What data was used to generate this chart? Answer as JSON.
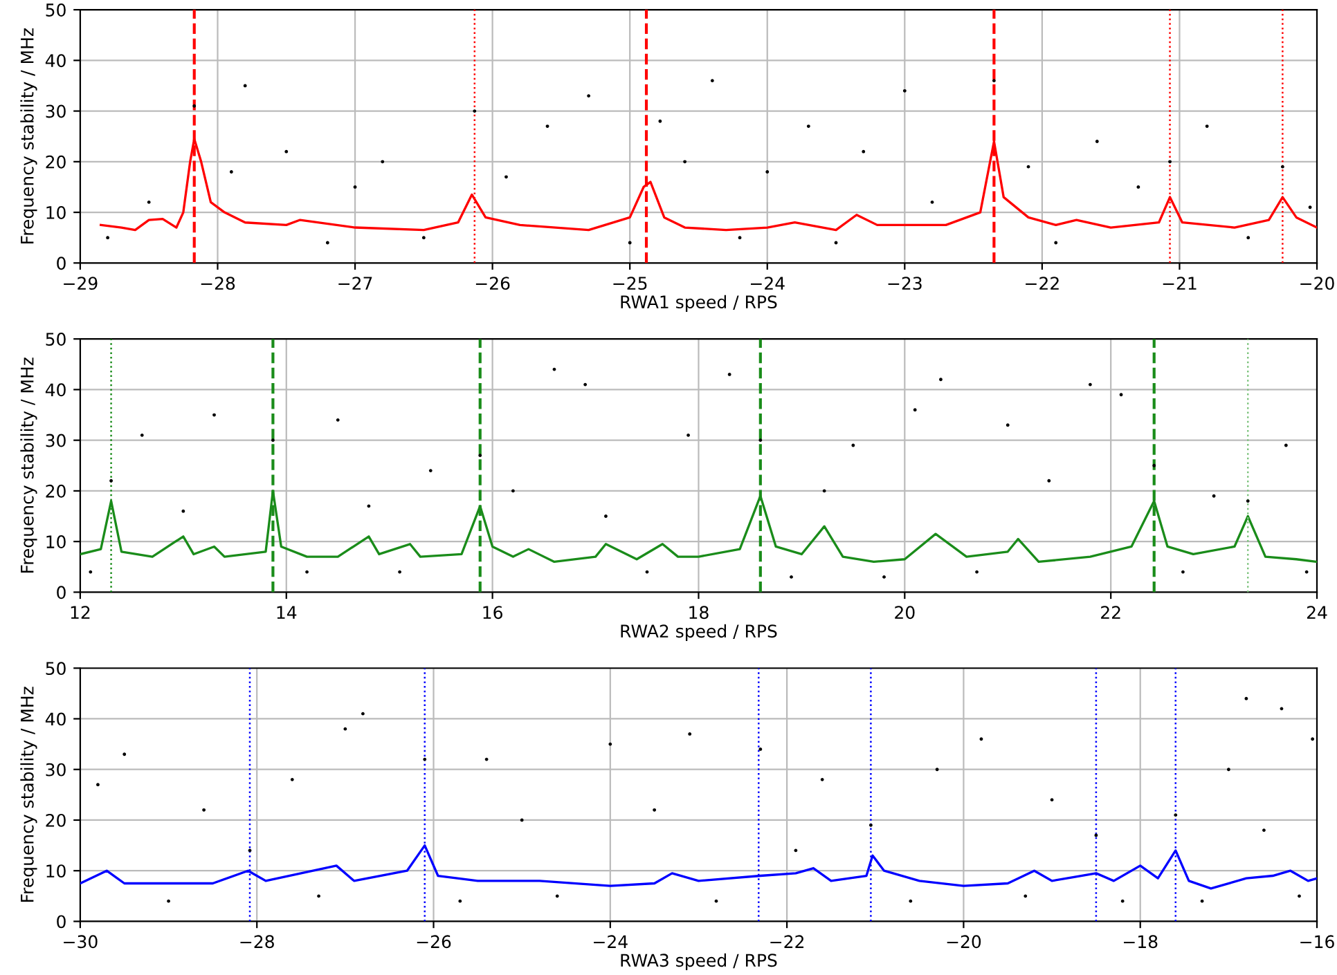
{
  "chart_data": [
    {
      "type": "scatter",
      "xlabel": "RWA1 speed / RPS",
      "ylabel": "Frequency stability / MHz",
      "xlim": [
        -29,
        -20
      ],
      "ylim": [
        0,
        50
      ],
      "xticks": [
        {
          "value": -29,
          "label": "−29"
        },
        {
          "value": -28,
          "label": "−28"
        },
        {
          "value": -27,
          "label": "−27"
        },
        {
          "value": -26,
          "label": "−26"
        },
        {
          "value": -25,
          "label": "−25"
        },
        {
          "value": -24,
          "label": "−24"
        },
        {
          "value": -23,
          "label": "−23"
        },
        {
          "value": -22,
          "label": "−22"
        },
        {
          "value": -21,
          "label": "−21"
        },
        {
          "value": -20,
          "label": "−20"
        }
      ],
      "yticks": [
        0,
        10,
        20,
        30,
        40,
        50
      ],
      "grid": true,
      "series": [
        {
          "color": "#000000",
          "marker": "circle",
          "x": [
            -28.8,
            -28.5,
            -28.17,
            -27.9,
            -27.8,
            -27.5,
            -27.2,
            -27.0,
            -26.8,
            -26.5,
            -26.13,
            -25.9,
            -25.6,
            -25.3,
            -25.0,
            -24.78,
            -24.6,
            -24.4,
            -24.2,
            -24.0,
            -23.7,
            -23.5,
            -23.3,
            -23.0,
            -22.8,
            -22.35,
            -22.1,
            -21.9,
            -21.6,
            -21.3,
            -21.07,
            -20.8,
            -20.5,
            -20.25,
            -20.05
          ],
          "values": [
            5,
            12,
            31,
            18,
            35,
            22,
            4,
            15,
            20,
            5,
            30,
            17,
            27,
            33,
            4,
            28,
            20,
            36,
            5,
            18,
            27,
            4,
            22,
            34,
            12,
            36,
            19,
            4,
            24,
            15,
            20,
            27,
            5,
            19,
            11
          ]
        },
        {
          "type": "line",
          "color": "#ff0000",
          "marker": "none",
          "x": [
            -28.85,
            -28.7,
            -28.6,
            -28.5,
            -28.4,
            -28.3,
            -28.25,
            -28.2,
            -28.17,
            -28.12,
            -28.05,
            -27.95,
            -27.8,
            -27.5,
            -27.4,
            -27.0,
            -26.5,
            -26.25,
            -26.15,
            -26.05,
            -25.8,
            -25.3,
            -25.0,
            -24.9,
            -24.85,
            -24.75,
            -24.6,
            -24.3,
            -24.0,
            -23.8,
            -23.5,
            -23.35,
            -23.2,
            -22.7,
            -22.45,
            -22.35,
            -22.28,
            -22.1,
            -21.9,
            -21.75,
            -21.5,
            -21.15,
            -21.07,
            -20.98,
            -20.6,
            -20.35,
            -20.25,
            -20.15,
            -20.0
          ],
          "values": [
            7.5,
            7,
            6.5,
            8.5,
            8.7,
            7,
            10,
            20,
            24.5,
            20,
            12,
            10,
            8,
            7.5,
            8.5,
            7,
            6.5,
            8,
            13.5,
            9,
            7.5,
            6.5,
            9,
            15,
            16,
            9,
            7,
            6.5,
            7,
            8,
            6.5,
            9.5,
            7.5,
            7.5,
            10,
            24,
            13,
            9,
            7.5,
            8.5,
            7,
            8,
            13,
            8,
            7,
            8.5,
            13,
            9,
            7
          ]
        }
      ],
      "ref_lines": [
        {
          "axis": "x",
          "value": -28.17,
          "color": "#ff0000",
          "line_style": "dashed"
        },
        {
          "axis": "x",
          "value": -26.13,
          "color": "#ff0000",
          "line_style": "dotted"
        },
        {
          "axis": "x",
          "value": -24.88,
          "color": "#ff0000",
          "line_style": "dashed"
        },
        {
          "axis": "x",
          "value": -22.35,
          "color": "#ff0000",
          "line_style": "dashed"
        },
        {
          "axis": "x",
          "value": -21.07,
          "color": "#ff0000",
          "line_style": "dotted"
        },
        {
          "axis": "x",
          "value": -20.25,
          "color": "#ff0000",
          "line_style": "dotted"
        }
      ]
    },
    {
      "type": "scatter",
      "xlabel": "RWA2 speed / RPS",
      "ylabel": "Frequency stability / MHz",
      "xlim": [
        12,
        24
      ],
      "ylim": [
        0,
        50
      ],
      "xticks": [
        12,
        14,
        16,
        18,
        20,
        22,
        24
      ],
      "yticks": [
        0,
        10,
        20,
        30,
        40,
        50
      ],
      "grid": true,
      "series": [
        {
          "color": "#000000",
          "marker": "circle",
          "x": [
            12.1,
            12.3,
            12.6,
            13.0,
            13.3,
            13.87,
            14.2,
            14.5,
            14.8,
            15.1,
            15.4,
            15.88,
            16.2,
            16.6,
            16.9,
            17.1,
            17.5,
            17.9,
            18.3,
            18.6,
            18.9,
            19.22,
            19.5,
            19.8,
            20.1,
            20.35,
            20.7,
            21.0,
            21.4,
            21.8,
            22.1,
            22.42,
            22.7,
            23.0,
            23.33,
            23.7,
            23.9
          ],
          "values": [
            4,
            22,
            31,
            16,
            35,
            30,
            4,
            34,
            17,
            4,
            24,
            27,
            20,
            44,
            41,
            15,
            4,
            31,
            43,
            30,
            3,
            20,
            29,
            3,
            36,
            42,
            4,
            33,
            22,
            41,
            39,
            25,
            4,
            19,
            18,
            29,
            4
          ]
        },
        {
          "type": "line",
          "color": "#1a8c1a",
          "marker": "none",
          "x": [
            12.0,
            12.2,
            12.3,
            12.4,
            12.7,
            13.0,
            13.1,
            13.3,
            13.4,
            13.8,
            13.87,
            13.95,
            14.2,
            14.5,
            14.8,
            14.9,
            15.2,
            15.3,
            15.7,
            15.88,
            16.0,
            16.2,
            16.35,
            16.6,
            17.0,
            17.1,
            17.4,
            17.65,
            17.8,
            18.0,
            18.4,
            18.6,
            18.75,
            19.0,
            19.22,
            19.4,
            19.7,
            20.0,
            20.3,
            20.6,
            21.0,
            21.1,
            21.3,
            21.8,
            22.2,
            22.42,
            22.55,
            22.8,
            23.2,
            23.33,
            23.5,
            23.8,
            24.0
          ],
          "values": [
            7.5,
            8.5,
            18,
            8,
            7,
            11,
            7.5,
            9,
            7,
            8,
            20,
            9,
            7,
            7,
            11,
            7.5,
            9.5,
            7,
            7.5,
            17,
            9,
            7,
            8.5,
            6,
            7,
            9.5,
            6.5,
            9.5,
            7,
            7,
            8.5,
            19,
            9,
            7.5,
            13,
            7,
            6,
            6.5,
            11.5,
            7,
            8,
            10.5,
            6,
            7,
            9,
            18,
            9,
            7.5,
            9,
            15,
            7,
            6.5,
            6
          ]
        }
      ],
      "ref_lines": [
        {
          "axis": "x",
          "value": 12.3,
          "color": "#1a8c1a",
          "line_style": "dotted"
        },
        {
          "axis": "x",
          "value": 13.87,
          "color": "#1a8c1a",
          "line_style": "dashed"
        },
        {
          "axis": "x",
          "value": 15.88,
          "color": "#1a8c1a",
          "line_style": "dashed"
        },
        {
          "axis": "x",
          "value": 18.6,
          "color": "#1a8c1a",
          "line_style": "dashed"
        },
        {
          "axis": "x",
          "value": 22.42,
          "color": "#1a8c1a",
          "line_style": "dashed"
        },
        {
          "axis": "x",
          "value": 23.33,
          "color": "#7fc47f",
          "line_style": "dotted"
        }
      ]
    },
    {
      "type": "scatter",
      "xlabel": "RWA3 speed / RPS",
      "ylabel": "Frequency stability / MHz",
      "xlim": [
        -30,
        -16
      ],
      "ylim": [
        0,
        50
      ],
      "xticks": [
        {
          "value": -30,
          "label": "−30"
        },
        {
          "value": -28,
          "label": "−28"
        },
        {
          "value": -26,
          "label": "−26"
        },
        {
          "value": -24,
          "label": "−24"
        },
        {
          "value": -22,
          "label": "−22"
        },
        {
          "value": -20,
          "label": "−20"
        },
        {
          "value": -18,
          "label": "−18"
        },
        {
          "value": -16,
          "label": "−16"
        }
      ],
      "yticks": [
        0,
        10,
        20,
        30,
        40,
        50
      ],
      "grid": true,
      "series": [
        {
          "color": "#000000",
          "marker": "circle",
          "x": [
            -29.8,
            -29.5,
            -29.0,
            -28.6,
            -28.08,
            -27.6,
            -27.3,
            -27.0,
            -26.8,
            -26.1,
            -25.7,
            -25.4,
            -25.0,
            -24.6,
            -24.0,
            -23.5,
            -23.1,
            -22.8,
            -22.3,
            -21.9,
            -21.6,
            -21.05,
            -20.6,
            -20.3,
            -19.8,
            -19.3,
            -19.0,
            -18.5,
            -18.2,
            -17.6,
            -17.3,
            -17.0,
            -16.8,
            -16.6,
            -16.4,
            -16.2,
            -16.05
          ],
          "values": [
            27,
            33,
            4,
            22,
            14,
            28,
            5,
            38,
            41,
            32,
            4,
            32,
            20,
            5,
            35,
            22,
            37,
            4,
            34,
            14,
            28,
            19,
            4,
            30,
            36,
            5,
            24,
            17,
            4,
            21,
            4,
            30,
            44,
            18,
            42,
            5,
            36
          ]
        },
        {
          "type": "line",
          "color": "#0000ff",
          "marker": "none",
          "x": [
            -30.0,
            -29.7,
            -29.5,
            -28.5,
            -28.1,
            -27.9,
            -27.1,
            -26.9,
            -26.3,
            -26.1,
            -25.95,
            -25.5,
            -24.8,
            -24.0,
            -23.5,
            -23.3,
            -23.0,
            -22.3,
            -21.9,
            -21.7,
            -21.5,
            -21.1,
            -21.03,
            -20.9,
            -20.5,
            -20.0,
            -19.5,
            -19.2,
            -19.0,
            -18.5,
            -18.3,
            -18.0,
            -17.8,
            -17.6,
            -17.45,
            -17.2,
            -16.8,
            -16.5,
            -16.3,
            -16.1,
            -16.0
          ],
          "values": [
            7.5,
            10,
            7.5,
            7.5,
            10,
            8,
            11,
            8,
            10,
            15,
            9,
            8,
            8,
            7,
            7.5,
            9.5,
            8,
            9,
            9.5,
            10.5,
            8,
            9,
            13,
            10,
            8,
            7,
            7.5,
            10,
            8,
            9.5,
            8,
            11,
            8.5,
            14,
            8,
            6.5,
            8.5,
            9,
            10,
            8,
            8.5
          ]
        }
      ],
      "ref_lines": [
        {
          "axis": "x",
          "value": -28.08,
          "color": "#0000ff",
          "line_style": "dotted"
        },
        {
          "axis": "x",
          "value": -26.1,
          "color": "#0000ff",
          "line_style": "dotted"
        },
        {
          "axis": "x",
          "value": -22.32,
          "color": "#0000ff",
          "line_style": "dotted"
        },
        {
          "axis": "x",
          "value": -21.05,
          "color": "#0000ff",
          "line_style": "dotted"
        },
        {
          "axis": "x",
          "value": -18.5,
          "color": "#0000ff",
          "line_style": "dotted"
        },
        {
          "axis": "x",
          "value": -17.6,
          "color": "#0000ff",
          "line_style": "dotted"
        }
      ]
    }
  ]
}
